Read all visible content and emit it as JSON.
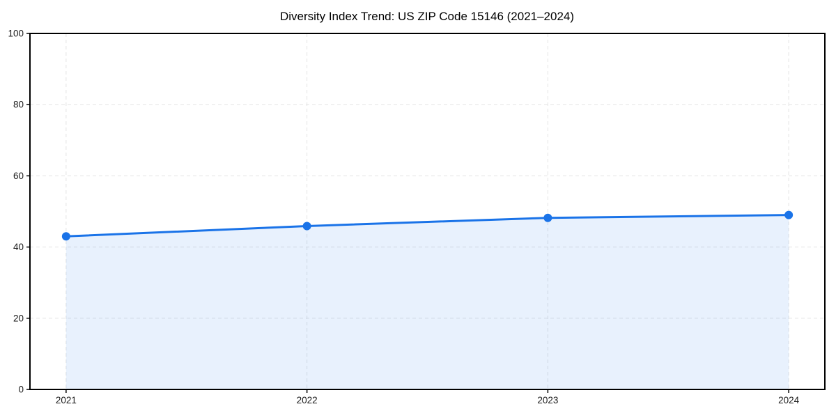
{
  "title": "Diversity Index Trend: US ZIP Code 15146 (2021–2024)",
  "colors": {
    "line": "#1a73e8",
    "marker": "#1a73e8",
    "area_fill": "#1a73e8",
    "area_fill_opacity": 0.1,
    "grid": "#e3e3e3",
    "spine": "#000000",
    "tick_mark": "#000000",
    "tick_label": "#1a1a1a",
    "background": "#ffffff"
  },
  "chart_data": {
    "type": "area",
    "title": "Diversity Index Trend: US ZIP Code 15146 (2021–2024)",
    "xlabel": "",
    "ylabel": "",
    "x": [
      2021,
      2022,
      2023,
      2024
    ],
    "x_tick_labels": [
      "2021",
      "2022",
      "2023",
      "2024"
    ],
    "series": [
      {
        "name": "Diversity Index",
        "values": [
          43.0,
          45.9,
          48.2,
          49.0
        ]
      }
    ],
    "y_ticks": [
      0,
      20,
      40,
      60,
      80,
      100
    ],
    "y_tick_labels": [
      "0",
      "20",
      "40",
      "60",
      "80",
      "100"
    ],
    "ylim": [
      0,
      100
    ],
    "xlim": [
      2020.85,
      2024.15
    ],
    "grid": "dashed-both-axes",
    "legend": "none",
    "markers": "filled-circle",
    "area_baseline": 0
  }
}
